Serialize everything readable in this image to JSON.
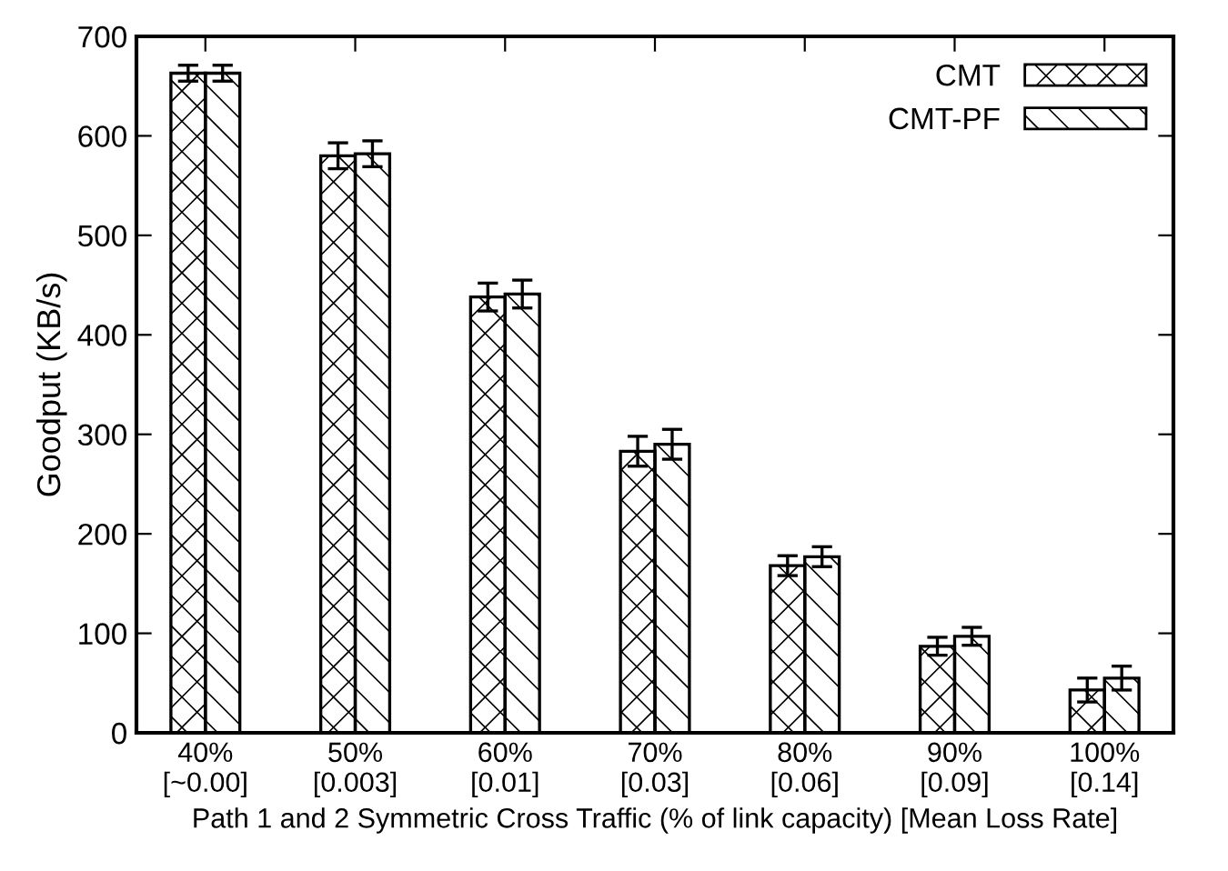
{
  "chart_data": {
    "type": "bar",
    "xlabel": "Path 1 and 2 Symmetric Cross Traffic (% of link capacity) [Mean Loss Rate]",
    "ylabel": "Goodput (KB/s)",
    "categories": [
      "40%\n[~0.00]",
      "50%\n[0.003]",
      "60%\n[0.01]",
      "70%\n[0.03]",
      "80%\n[0.06]",
      "90%\n[0.09]",
      "100%\n[0.14]"
    ],
    "series": [
      {
        "name": "CMT",
        "color": "#000000",
        "values": [
          663,
          580,
          438,
          283,
          168,
          87,
          43
        ],
        "errors": [
          8,
          13,
          14,
          15,
          10,
          9,
          12
        ]
      },
      {
        "name": "CMT-PF",
        "color": "#000000",
        "values": [
          663,
          582,
          441,
          290,
          177,
          97,
          55
        ],
        "errors": [
          8,
          13,
          14,
          15,
          10,
          9,
          12
        ]
      }
    ],
    "ylim": [
      0,
      700
    ],
    "yticks": [
      0,
      100,
      200,
      300,
      400,
      500,
      600,
      700
    ],
    "grid": false,
    "legend": "top right"
  }
}
